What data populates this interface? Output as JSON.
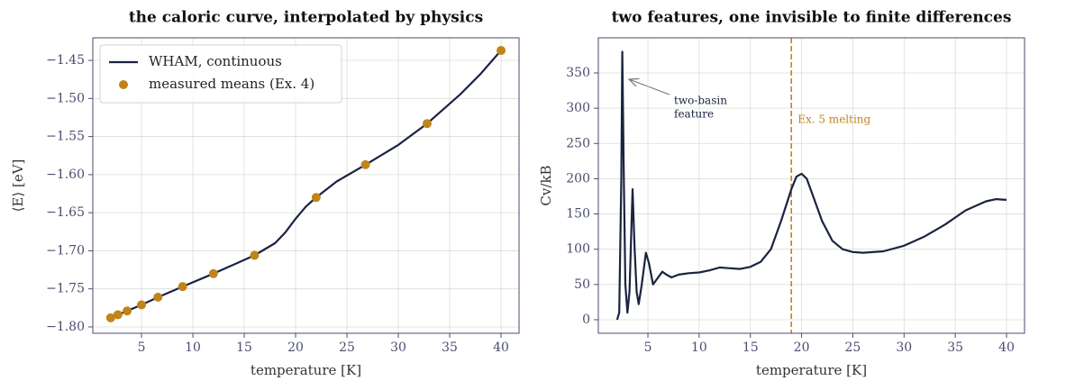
{
  "chart_data": [
    {
      "type": "line",
      "title": "the caloric curve, interpolated by physics",
      "x_label": "temperature  [K]",
      "y_label": "⟨E⟩  [eV]",
      "xlim": [
        0.26,
        41.75
      ],
      "ylim": [
        -1.8083,
        -1.4204
      ],
      "xticks": [
        5,
        10,
        15,
        20,
        25,
        30,
        35,
        40
      ],
      "yticks": [
        {
          "value": -1.8,
          "label": "−1.80"
        },
        {
          "value": -1.75,
          "label": "−1.75"
        },
        {
          "value": -1.7,
          "label": "−1.70"
        },
        {
          "value": -1.65,
          "label": "−1.65"
        },
        {
          "value": -1.6,
          "label": "−1.60"
        },
        {
          "value": -1.55,
          "label": "−1.55"
        },
        {
          "value": -1.5,
          "label": "−1.50"
        },
        {
          "value": -1.45,
          "label": "−1.45"
        }
      ],
      "grid": true,
      "legend": "upper left",
      "series": [
        {
          "name": "WHAM, continuous",
          "type": "line",
          "color": "#1a2340",
          "x": [
            2,
            2.7,
            3.6,
            5,
            6.6,
            9,
            12,
            16,
            18,
            19,
            20,
            21,
            22,
            24,
            26.8,
            30,
            32.8,
            36,
            38,
            40
          ],
          "values": [
            -1.788,
            -1.784,
            -1.779,
            -1.771,
            -1.761,
            -1.747,
            -1.73,
            -1.706,
            -1.69,
            -1.676,
            -1.658,
            -1.642,
            -1.63,
            -1.609,
            -1.587,
            -1.561,
            -1.533,
            -1.495,
            -1.468,
            -1.437
          ]
        },
        {
          "name": "measured means (Ex. 4)",
          "type": "scatter",
          "color": "#c0841a",
          "x": [
            2,
            2.7,
            3.6,
            5,
            6.6,
            9,
            12,
            16,
            22,
            26.8,
            32.8,
            40
          ],
          "values": [
            -1.788,
            -1.784,
            -1.779,
            -1.771,
            -1.761,
            -1.747,
            -1.73,
            -1.706,
            -1.63,
            -1.587,
            -1.533,
            -1.437
          ]
        }
      ]
    },
    {
      "type": "line",
      "title": "two features, one invisible to finite differences",
      "x_label": "temperature  [K]",
      "y_label": "Cv/kB",
      "xlim": [
        0.16,
        41.76
      ],
      "ylim": [
        -19.2,
        399.8
      ],
      "xticks": [
        5,
        10,
        15,
        20,
        25,
        30,
        35,
        40
      ],
      "yticks": [
        0,
        50,
        100,
        150,
        200,
        250,
        300,
        350
      ],
      "grid": true,
      "annotation_lines": [
        "two-basin",
        "feature"
      ],
      "vlines": [
        {
          "x": 19,
          "color": "#c0841a",
          "label": "Ex. 5 melting"
        }
      ],
      "series": [
        {
          "type": "line",
          "color": "#1a2340",
          "x": [
            2,
            2.2,
            2.4,
            2.5,
            2.65,
            2.8,
            3.0,
            3.2,
            3.5,
            3.7,
            3.9,
            4.1,
            4.4,
            4.8,
            5.1,
            5.5,
            6.0,
            6.4,
            6.8,
            7.3,
            8,
            9,
            10,
            11,
            12,
            13,
            14,
            15,
            16,
            17,
            18,
            19,
            19.5,
            20,
            20.5,
            21,
            22,
            23,
            24,
            25,
            26,
            28,
            30,
            32,
            34,
            36,
            38,
            39,
            40
          ],
          "values": [
            0,
            10,
            200,
            380,
            200,
            50,
            10,
            40,
            185,
            100,
            40,
            22,
            50,
            95,
            80,
            50,
            60,
            68,
            64,
            60,
            64,
            66,
            67,
            70,
            74,
            73,
            72,
            75,
            82,
            100,
            140,
            185,
            203,
            207,
            200,
            180,
            140,
            112,
            100,
            96,
            95,
            97,
            105,
            118,
            135,
            155,
            168,
            171,
            170
          ]
        }
      ]
    }
  ]
}
